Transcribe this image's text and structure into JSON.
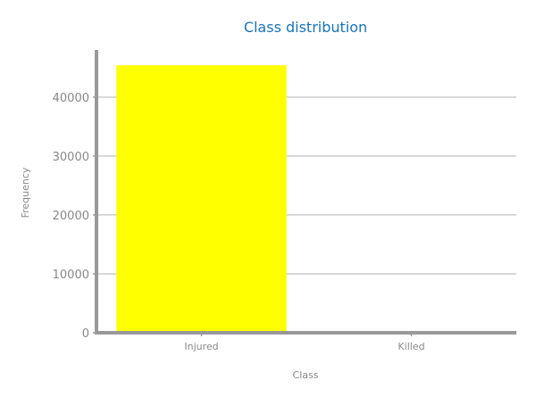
{
  "chart_data": {
    "type": "bar",
    "title": "Class distribution",
    "xlabel": "Class",
    "ylabel": "Frequency",
    "categories": [
      "Injured",
      "Killed"
    ],
    "values": [
      45400,
      150
    ],
    "ylim": [
      0,
      48000
    ],
    "yticks": [
      0,
      10000,
      20000,
      30000,
      40000
    ],
    "grid": true,
    "legend": "none",
    "colors": {
      "bar": "#ffff00",
      "title": "#1a72b8",
      "axis": "#999999",
      "grid": "#cccccc",
      "tick_text": "#888888"
    }
  }
}
